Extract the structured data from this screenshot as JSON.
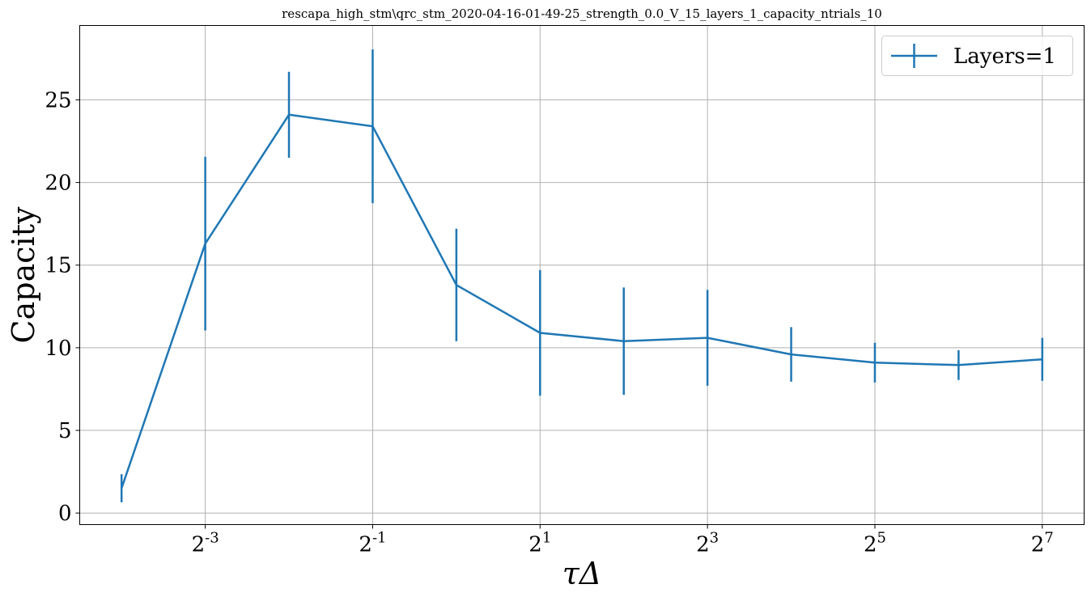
{
  "chart_data": {
    "type": "line",
    "title": "rescapa_high_stm\\qrc_stm_2020-04-16-01-49-25_strength_0.0_V_15_layers_1_capacity_ntrials_10",
    "xlabel": "τΔ",
    "ylabel": "Capacity",
    "xscale": "log2",
    "xlim": [
      0.0442,
      181
    ],
    "ylim": [
      -0.7,
      29.5
    ],
    "grid": true,
    "legend_position": "top-right",
    "x_ticks": [
      {
        "value": 0.125,
        "base": "2",
        "exp": "-3"
      },
      {
        "value": 0.5,
        "base": "2",
        "exp": "-1"
      },
      {
        "value": 2,
        "base": "2",
        "exp": "1"
      },
      {
        "value": 8,
        "base": "2",
        "exp": "3"
      },
      {
        "value": 32,
        "base": "2",
        "exp": "5"
      },
      {
        "value": 128,
        "base": "2",
        "exp": "7"
      }
    ],
    "y_ticks": [
      0,
      5,
      10,
      15,
      20,
      25
    ],
    "series": [
      {
        "name": "Layers=1",
        "color": "#1f77b4",
        "x": [
          0.0625,
          0.125,
          0.25,
          0.5,
          1,
          2,
          4,
          8,
          16,
          32,
          64,
          128
        ],
        "y": [
          1.5,
          16.3,
          24.1,
          23.4,
          13.8,
          10.9,
          10.4,
          10.6,
          9.6,
          9.1,
          8.95,
          9.3
        ],
        "err": [
          0.85,
          5.25,
          2.6,
          4.65,
          3.4,
          3.8,
          3.25,
          2.9,
          1.65,
          1.2,
          0.9,
          1.3
        ]
      }
    ]
  }
}
